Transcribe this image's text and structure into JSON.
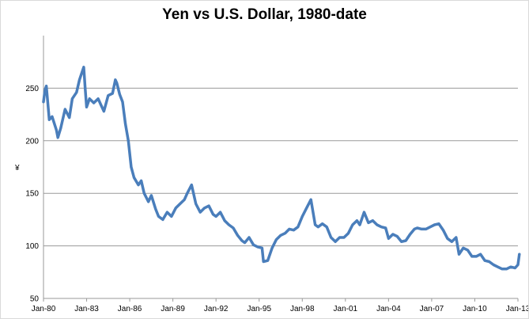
{
  "chart_data": {
    "type": "line",
    "title": "Yen vs U.S. Dollar, 1980-date",
    "xlabel": "",
    "ylabel": "¥",
    "ylim": [
      50,
      300
    ],
    "yticks": [
      50,
      100,
      150,
      200,
      250
    ],
    "xticks": [
      "Jan-80",
      "Jan-83",
      "Jan-86",
      "Jan-89",
      "Jan-92",
      "Jan-95",
      "Jan-98",
      "Jan-01",
      "Jan-04",
      "Jan-07",
      "Jan-10",
      "Jan-13"
    ],
    "grid": "horizontal",
    "color": "#4a7ebb",
    "series": [
      {
        "x": [
          1980.0,
          1980.1,
          1980.2,
          1980.4,
          1980.6,
          1980.9,
          1981.0,
          1981.2,
          1981.5,
          1981.8,
          1982.0,
          1982.3,
          1982.5,
          1982.8,
          1982.9,
          1983.0,
          1983.2,
          1983.5,
          1983.8,
          1984.0,
          1984.2,
          1984.5,
          1984.8,
          1985.0,
          1985.1,
          1985.3,
          1985.5,
          1985.7,
          1985.9,
          1986.1,
          1986.3,
          1986.6,
          1986.8,
          1987.0,
          1987.3,
          1987.5,
          1987.8,
          1988.0,
          1988.3,
          1988.6,
          1988.9,
          1989.2,
          1989.5,
          1989.8,
          1990.0,
          1990.3,
          1990.6,
          1990.9,
          1991.2,
          1991.5,
          1991.8,
          1992.0,
          1992.3,
          1992.6,
          1992.9,
          1993.2,
          1993.5,
          1993.8,
          1994.0,
          1994.3,
          1994.6,
          1994.9,
          1995.2,
          1995.3,
          1995.6,
          1995.9,
          1996.2,
          1996.5,
          1996.8,
          1997.1,
          1997.4,
          1997.7,
          1998.0,
          1998.3,
          1998.6,
          1998.9,
          1999.1,
          1999.4,
          1999.7,
          2000.0,
          2000.3,
          2000.6,
          2000.9,
          2001.2,
          2001.5,
          2001.8,
          2002.0,
          2002.3,
          2002.6,
          2002.9,
          2003.2,
          2003.5,
          2003.8,
          2004.0,
          2004.3,
          2004.6,
          2004.9,
          2005.2,
          2005.5,
          2005.8,
          2006.0,
          2006.3,
          2006.6,
          2006.9,
          2007.2,
          2007.5,
          2007.8,
          2008.1,
          2008.4,
          2008.7,
          2008.9,
          2009.2,
          2009.5,
          2009.8,
          2010.1,
          2010.4,
          2010.7,
          2011.0,
          2011.3,
          2011.6,
          2011.9,
          2012.2,
          2012.5,
          2012.8,
          2013.0,
          2013.1
        ],
        "y": [
          237,
          248,
          252,
          220,
          223,
          210,
          203,
          212,
          230,
          222,
          240,
          246,
          258,
          270,
          250,
          232,
          240,
          236,
          240,
          234,
          228,
          243,
          245,
          258,
          255,
          244,
          237,
          216,
          200,
          175,
          165,
          158,
          162,
          150,
          142,
          148,
          135,
          128,
          125,
          132,
          128,
          136,
          140,
          144,
          150,
          158,
          140,
          132,
          136,
          138,
          130,
          128,
          132,
          124,
          120,
          117,
          110,
          105,
          103,
          108,
          101,
          99,
          98,
          85,
          86,
          98,
          106,
          110,
          112,
          116,
          115,
          118,
          128,
          136,
          144,
          120,
          118,
          121,
          118,
          108,
          104,
          108,
          108,
          112,
          120,
          124,
          120,
          132,
          122,
          124,
          120,
          118,
          117,
          107,
          111,
          109,
          104,
          105,
          111,
          116,
          117,
          116,
          116,
          118,
          120,
          121,
          115,
          107,
          104,
          108,
          92,
          98,
          96,
          90,
          90,
          92,
          86,
          85,
          82,
          80,
          78,
          78,
          80,
          79,
          82,
          92
        ]
      }
    ]
  }
}
